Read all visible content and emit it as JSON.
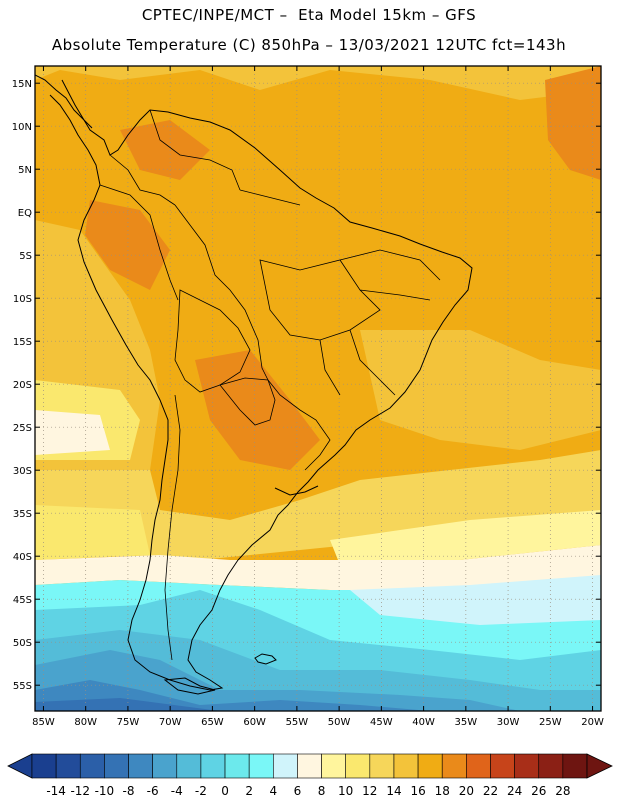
{
  "header": {
    "line1": "CPTEC/INPE/MCT –  Eta Model 15km – GFS",
    "line2": "Absolute Temperature (C) 850hPa – 13/03/2021 12UTC fct=143h"
  },
  "map": {
    "lon_range": [
      -86,
      -19
    ],
    "lat_range": [
      17,
      -58
    ],
    "lat_ticks": [
      {
        "value": 15,
        "label": "15N"
      },
      {
        "value": 10,
        "label": "10N"
      },
      {
        "value": 5,
        "label": "5N"
      },
      {
        "value": 0,
        "label": "EQ"
      },
      {
        "value": -5,
        "label": "5S"
      },
      {
        "value": -10,
        "label": "10S"
      },
      {
        "value": -15,
        "label": "15S"
      },
      {
        "value": -20,
        "label": "20S"
      },
      {
        "value": -25,
        "label": "25S"
      },
      {
        "value": -30,
        "label": "30S"
      },
      {
        "value": -35,
        "label": "35S"
      },
      {
        "value": -40,
        "label": "40S"
      },
      {
        "value": -45,
        "label": "45S"
      },
      {
        "value": -50,
        "label": "50S"
      },
      {
        "value": -55,
        "label": "55S"
      }
    ],
    "lon_ticks": [
      {
        "value": -85,
        "label": "85W"
      },
      {
        "value": -80,
        "label": "80W"
      },
      {
        "value": -75,
        "label": "75W"
      },
      {
        "value": -70,
        "label": "70W"
      },
      {
        "value": -65,
        "label": "65W"
      },
      {
        "value": -60,
        "label": "60W"
      },
      {
        "value": -55,
        "label": "55W"
      },
      {
        "value": -50,
        "label": "50W"
      },
      {
        "value": -45,
        "label": "45W"
      },
      {
        "value": -40,
        "label": "40W"
      },
      {
        "value": -35,
        "label": "35W"
      },
      {
        "value": -30,
        "label": "30W"
      },
      {
        "value": -25,
        "label": "25W"
      },
      {
        "value": -20,
        "label": "20W"
      }
    ]
  },
  "colorbar": {
    "labels": [
      "-14",
      "-12",
      "-10",
      "-8",
      "-6",
      "-4",
      "-2",
      "0",
      "2",
      "4",
      "6",
      "8",
      "10",
      "12",
      "14",
      "16",
      "18",
      "20",
      "22",
      "24",
      "26",
      "28"
    ],
    "colors": [
      "#1a3f8f",
      "#224c9a",
      "#2b5fa8",
      "#3472b4",
      "#3e88c0",
      "#4aa3cd",
      "#54bcd8",
      "#5fd3e4",
      "#6ce9ec",
      "#7af7f7",
      "#d0f4fb",
      "#fff6e0",
      "#fff59d",
      "#fae86e",
      "#f6d65a",
      "#f3c33a",
      "#f0ac14",
      "#ea8a1a",
      "#e0641a",
      "#c7441a",
      "#a82e18",
      "#8b2015",
      "#6e1511"
    ]
  }
}
